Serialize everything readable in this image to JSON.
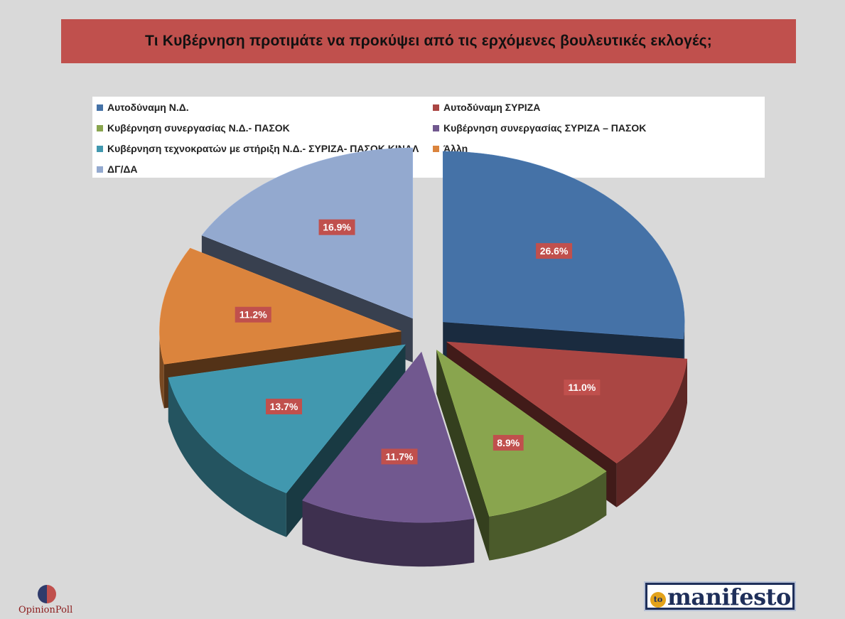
{
  "chart_data": {
    "type": "pie",
    "title": "Τι Κυβέρνηση προτιμάτε να προκύψει από τις ερχόμενες βουλευτικές εκλογές;",
    "legend_position": "top",
    "slices": [
      {
        "label": "Αυτοδύναμη Ν.Δ.",
        "value": 26.6,
        "value_label": "26.6%",
        "color": "#4572a7"
      },
      {
        "label": "Αυτοδύναμη ΣΥΡΙΖΑ",
        "value": 11.0,
        "value_label": "11.0%",
        "color": "#aa4643"
      },
      {
        "label": "Κυβέρνηση συνεργασίας Ν.Δ.- ΠΑΣΟΚ",
        "value": 8.9,
        "value_label": "8.9%",
        "color": "#89a54e"
      },
      {
        "label": "Κυβέρνηση συνεργασίας ΣΥΡΙΖΑ – ΠΑΣΟΚ",
        "value": 11.7,
        "value_label": "11.7%",
        "color": "#71588f"
      },
      {
        "label": "Κυβέρνηση τεχνοκρατών με στήριξη Ν.Δ.- ΣΥΡΙΖΑ- ΠΑΣΟΚ ΚΙΝΑΛ",
        "value": 13.7,
        "value_label": "13.7%",
        "color": "#4198af"
      },
      {
        "label": "Άλλη",
        "value": 11.2,
        "value_label": "11.2%",
        "color": "#db843d"
      },
      {
        "label": "ΔΓ/ΔΑ",
        "value": 16.9,
        "value_label": "16.9%",
        "color": "#93a9cf"
      }
    ],
    "label_box_color": "#c0504d"
  },
  "branding": {
    "left_logo": "OpinionPoll",
    "right_logo_prefix": "to",
    "right_logo": "manifesto"
  }
}
